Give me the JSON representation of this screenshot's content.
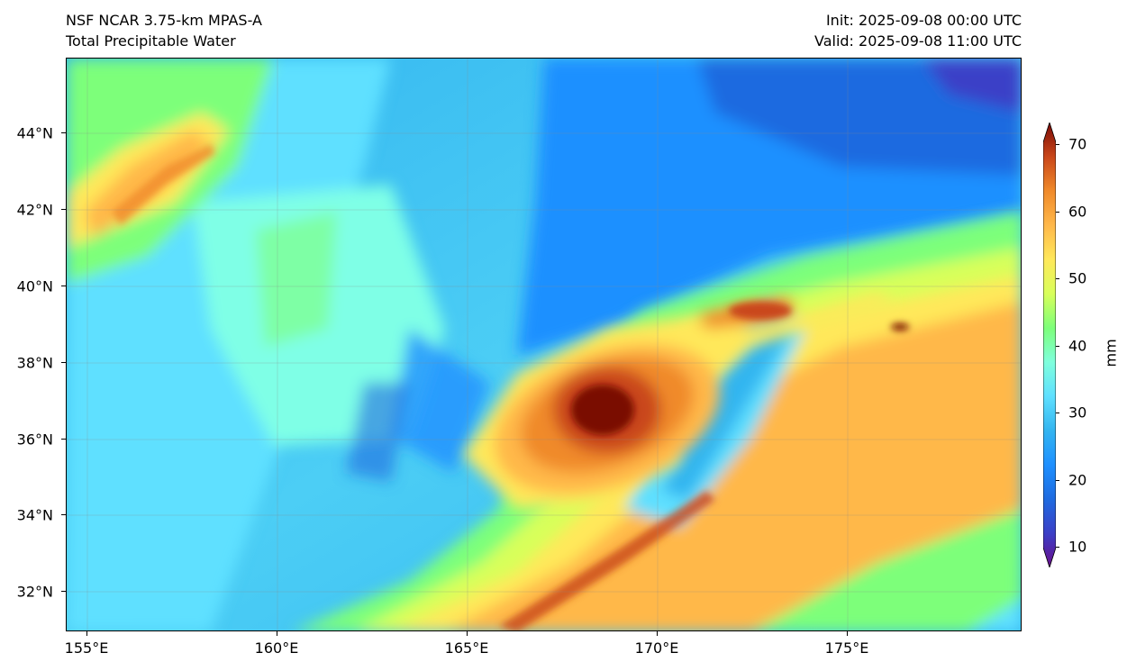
{
  "header": {
    "model": "NSF NCAR 3.75-km MPAS-A",
    "field": "Total Precipitable Water",
    "init": "Init: 2025-09-08 00:00 UTC",
    "valid": "Valid: 2025-09-08 11:00 UTC"
  },
  "axes": {
    "lat_labels": [
      "44°N",
      "42°N",
      "40°N",
      "38°N",
      "36°N",
      "34°N",
      "32°N"
    ],
    "lon_labels": [
      "155°E",
      "160°E",
      "165°E",
      "170°E",
      "175°E"
    ]
  },
  "colorbar": {
    "unit": "mm",
    "tick_labels": [
      "70",
      "60",
      "50",
      "40",
      "30",
      "20",
      "10"
    ],
    "stops": [
      "#6a0d8a",
      "#3b3fc7",
      "#1f6be0",
      "#1e90ff",
      "#33b5f0",
      "#5fe0ff",
      "#7fffdc",
      "#7dff7a",
      "#d8ff5a",
      "#ffe85a",
      "#ffb84a",
      "#f08a2a",
      "#c9471a",
      "#7a0a06"
    ]
  }
}
